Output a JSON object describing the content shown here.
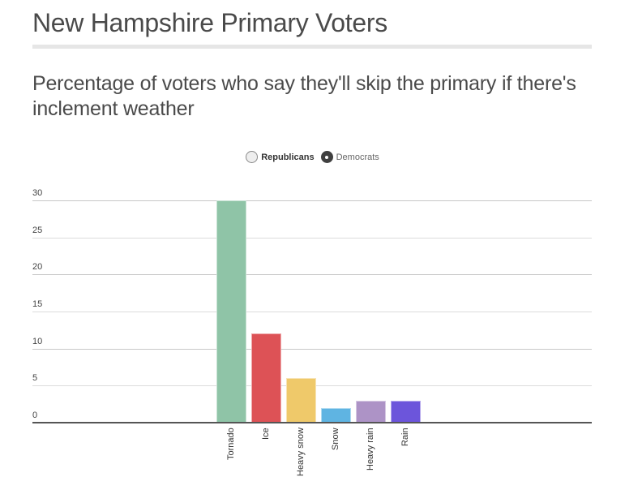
{
  "header": {
    "title": "New Hampshire Primary Voters",
    "subtitle": "Percentage of voters who say they'll skip the primary if there's inclement weather"
  },
  "legend": {
    "items": [
      {
        "label": "Republicans",
        "selected": false
      },
      {
        "label": "Democrats",
        "selected": true
      }
    ]
  },
  "colors": {
    "Tornado": "#8fc4a7",
    "Ice": "#dd5256",
    "Heavy snow": "#efc96a",
    "Snow": "#5fb4e2",
    "Heavy rain": "#ad93c6",
    "Rain": "#6c55db",
    "gridline": "#c8c8c8",
    "baseline": "#555555",
    "separator": "#e6e6e6"
  },
  "chart_data": {
    "type": "bar",
    "title": "Percentage of voters who say they'll skip the primary if there's inclement weather",
    "categories": [
      "Tornado",
      "Ice",
      "Heavy snow",
      "Snow",
      "Heavy rain",
      "Rain"
    ],
    "series": [
      {
        "name": "Democrats",
        "values": [
          30,
          12,
          6,
          2,
          3,
          3
        ]
      }
    ],
    "legend": [
      "Republicans",
      "Democrats"
    ],
    "legend_position": "top",
    "selected_series": "Democrats",
    "xlabel": "",
    "ylabel": "",
    "ylim": [
      0,
      30
    ],
    "yticks": [
      0,
      5,
      10,
      15,
      20,
      25,
      30
    ],
    "grid": true
  }
}
